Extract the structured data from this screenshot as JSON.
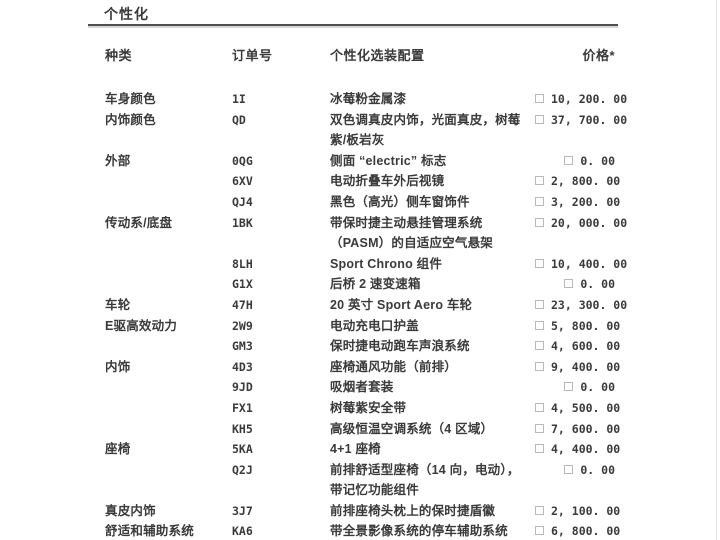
{
  "document": {
    "section_title": "个性化"
  },
  "table": {
    "headers": {
      "category": "种类",
      "code": "订单号",
      "config": "个性化选装配置",
      "price": "价格*"
    },
    "rows": [
      {
        "category": "车身颜色",
        "code": "1I",
        "config": [
          "冰莓粉金属漆"
        ],
        "price": "10, 200. 00",
        "checkbox": true
      },
      {
        "category": "内饰颜色",
        "code": "QD",
        "config": [
          "双色调真皮内饰，光面真皮，树莓",
          "紫/板岩灰"
        ],
        "price": "37, 700. 00",
        "checkbox": true
      },
      {
        "category": "外部",
        "code": "0QG",
        "config": [
          "侧面 “electric” 标志"
        ],
        "price": "0. 00",
        "checkbox": true
      },
      {
        "category": "",
        "code": "6XV",
        "config": [
          "电动折叠车外后视镜"
        ],
        "price": "2, 800. 00",
        "checkbox": true
      },
      {
        "category": "",
        "code": "QJ4",
        "config": [
          "黑色（高光）侧车窗饰件"
        ],
        "price": "3, 200. 00",
        "checkbox": true
      },
      {
        "category": "传动系/底盘",
        "code": "1BK",
        "config": [
          "带保时捷主动悬挂管理系统",
          "（PASM）的自适应空气悬架"
        ],
        "price": "20, 000. 00",
        "checkbox": true
      },
      {
        "category": "",
        "code": "8LH",
        "config": [
          "Sport Chrono 组件"
        ],
        "price": "10, 400. 00",
        "checkbox": true
      },
      {
        "category": "",
        "code": "G1X",
        "config": [
          "后桥 2 速变速箱"
        ],
        "price": "0. 00",
        "checkbox": true
      },
      {
        "category": "车轮",
        "code": "47H",
        "config": [
          "20 英寸 Sport Aero 车轮"
        ],
        "price": "23, 300. 00",
        "checkbox": true
      },
      {
        "category": "E驱高效动力",
        "code": "2W9",
        "config": [
          "电动充电口护盖"
        ],
        "price": "5, 800. 00",
        "checkbox": true
      },
      {
        "category": "",
        "code": "GM3",
        "config": [
          "保时捷电动跑车声浪系统"
        ],
        "price": "4, 600. 00",
        "checkbox": true
      },
      {
        "category": "内饰",
        "code": "4D3",
        "config": [
          "座椅通风功能（前排）"
        ],
        "price": "9, 400. 00",
        "checkbox": true
      },
      {
        "category": "",
        "code": "9JD",
        "config": [
          "吸烟者套装"
        ],
        "price": "0. 00",
        "checkbox": true
      },
      {
        "category": "",
        "code": "FX1",
        "config": [
          "树莓紫安全带"
        ],
        "price": "4, 500. 00",
        "checkbox": true
      },
      {
        "category": "",
        "code": "KH5",
        "config": [
          "高级恒温空调系统（4 区域）"
        ],
        "price": "7, 600. 00",
        "checkbox": true
      },
      {
        "category": "座椅",
        "code": "5KA",
        "config": [
          "4+1 座椅"
        ],
        "price": "4, 400. 00",
        "checkbox": true
      },
      {
        "category": "",
        "code": "Q2J",
        "config": [
          "前排舒适型座椅（14 向，电动），",
          "带记忆功能组件"
        ],
        "price": "0. 00",
        "checkbox": true
      },
      {
        "category": "真皮内饰",
        "code": "3J7",
        "config": [
          "前排座椅头枕上的保时捷盾徽"
        ],
        "price": "2, 100. 00",
        "checkbox": true
      },
      {
        "category": "舒适和辅助系统",
        "code": "KA6",
        "config": [
          "带全景影像系统的停车辅助系统"
        ],
        "price": "6, 800. 00",
        "checkbox": true
      }
    ]
  },
  "colors": {
    "text": "#3a3a3a",
    "rule_dark": "#4f4f4f",
    "rule_light": "#d6d6d6",
    "checkbox_border": "#b9b9b9",
    "page_background": "#ffffff"
  }
}
